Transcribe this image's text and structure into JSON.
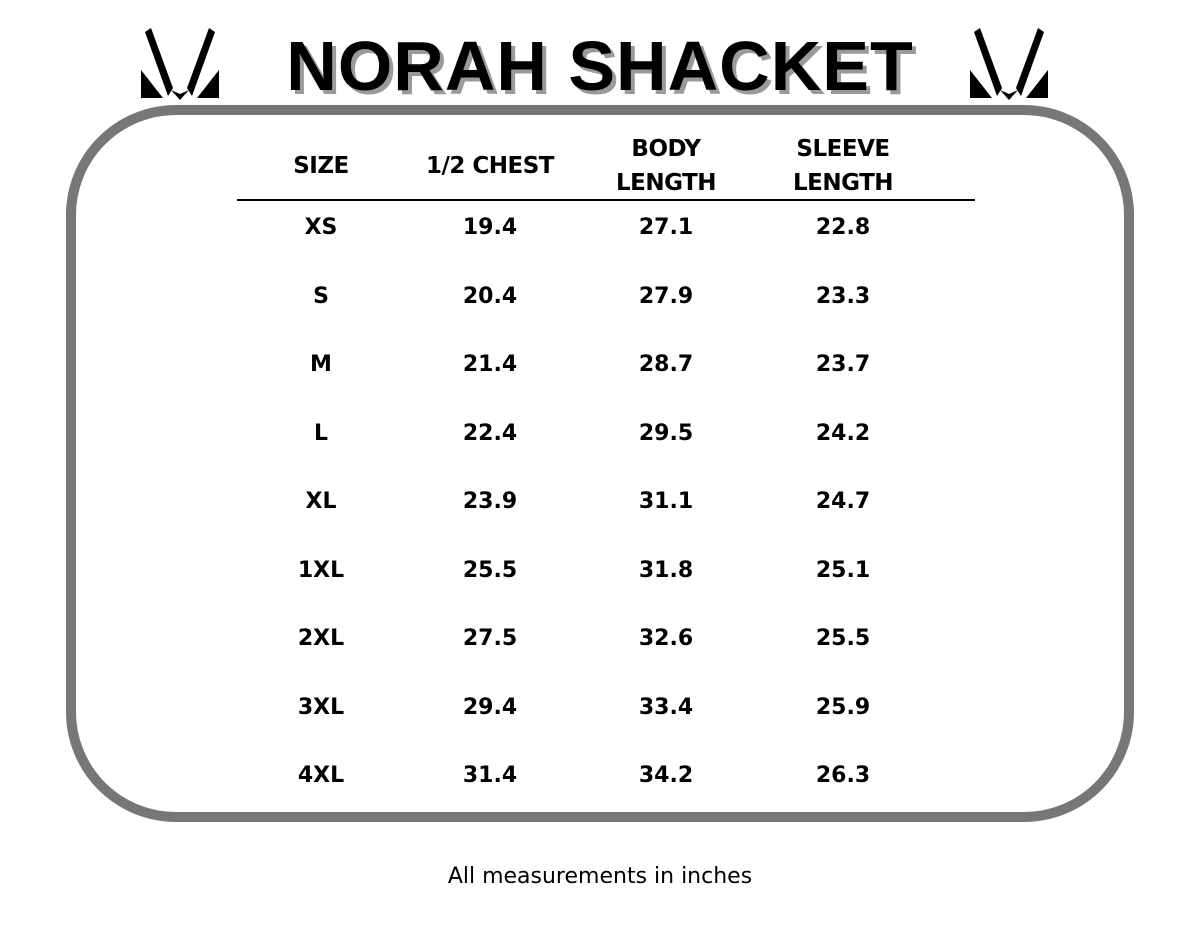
{
  "title": "NORAH SHACKET",
  "logo": {
    "icon": "m-v-monogram-icon",
    "color": "#000000"
  },
  "colors": {
    "frame": "#777777",
    "title_shadow": "#9a9a9a"
  },
  "table": {
    "headers": [
      {
        "line1": "SIZE",
        "line2": ""
      },
      {
        "line1": "1/2 CHEST",
        "line2": ""
      },
      {
        "line1": "BODY",
        "line2": "LENGTH"
      },
      {
        "line1": "SLEEVE",
        "line2": "LENGTH"
      }
    ],
    "rows": [
      [
        "XS",
        "19.4",
        "27.1",
        "22.8"
      ],
      [
        "S",
        "20.4",
        "27.9",
        "23.3"
      ],
      [
        "M",
        "21.4",
        "28.7",
        "23.7"
      ],
      [
        "L",
        "22.4",
        "29.5",
        "24.2"
      ],
      [
        "XL",
        "23.9",
        "31.1",
        "24.7"
      ],
      [
        "1XL",
        "25.5",
        "31.8",
        "25.1"
      ],
      [
        "2XL",
        "27.5",
        "32.6",
        "25.5"
      ],
      [
        "3XL",
        "29.4",
        "33.4",
        "25.9"
      ],
      [
        "4XL",
        "31.4",
        "34.2",
        "26.3"
      ]
    ]
  },
  "footer": "All measurements in inches"
}
